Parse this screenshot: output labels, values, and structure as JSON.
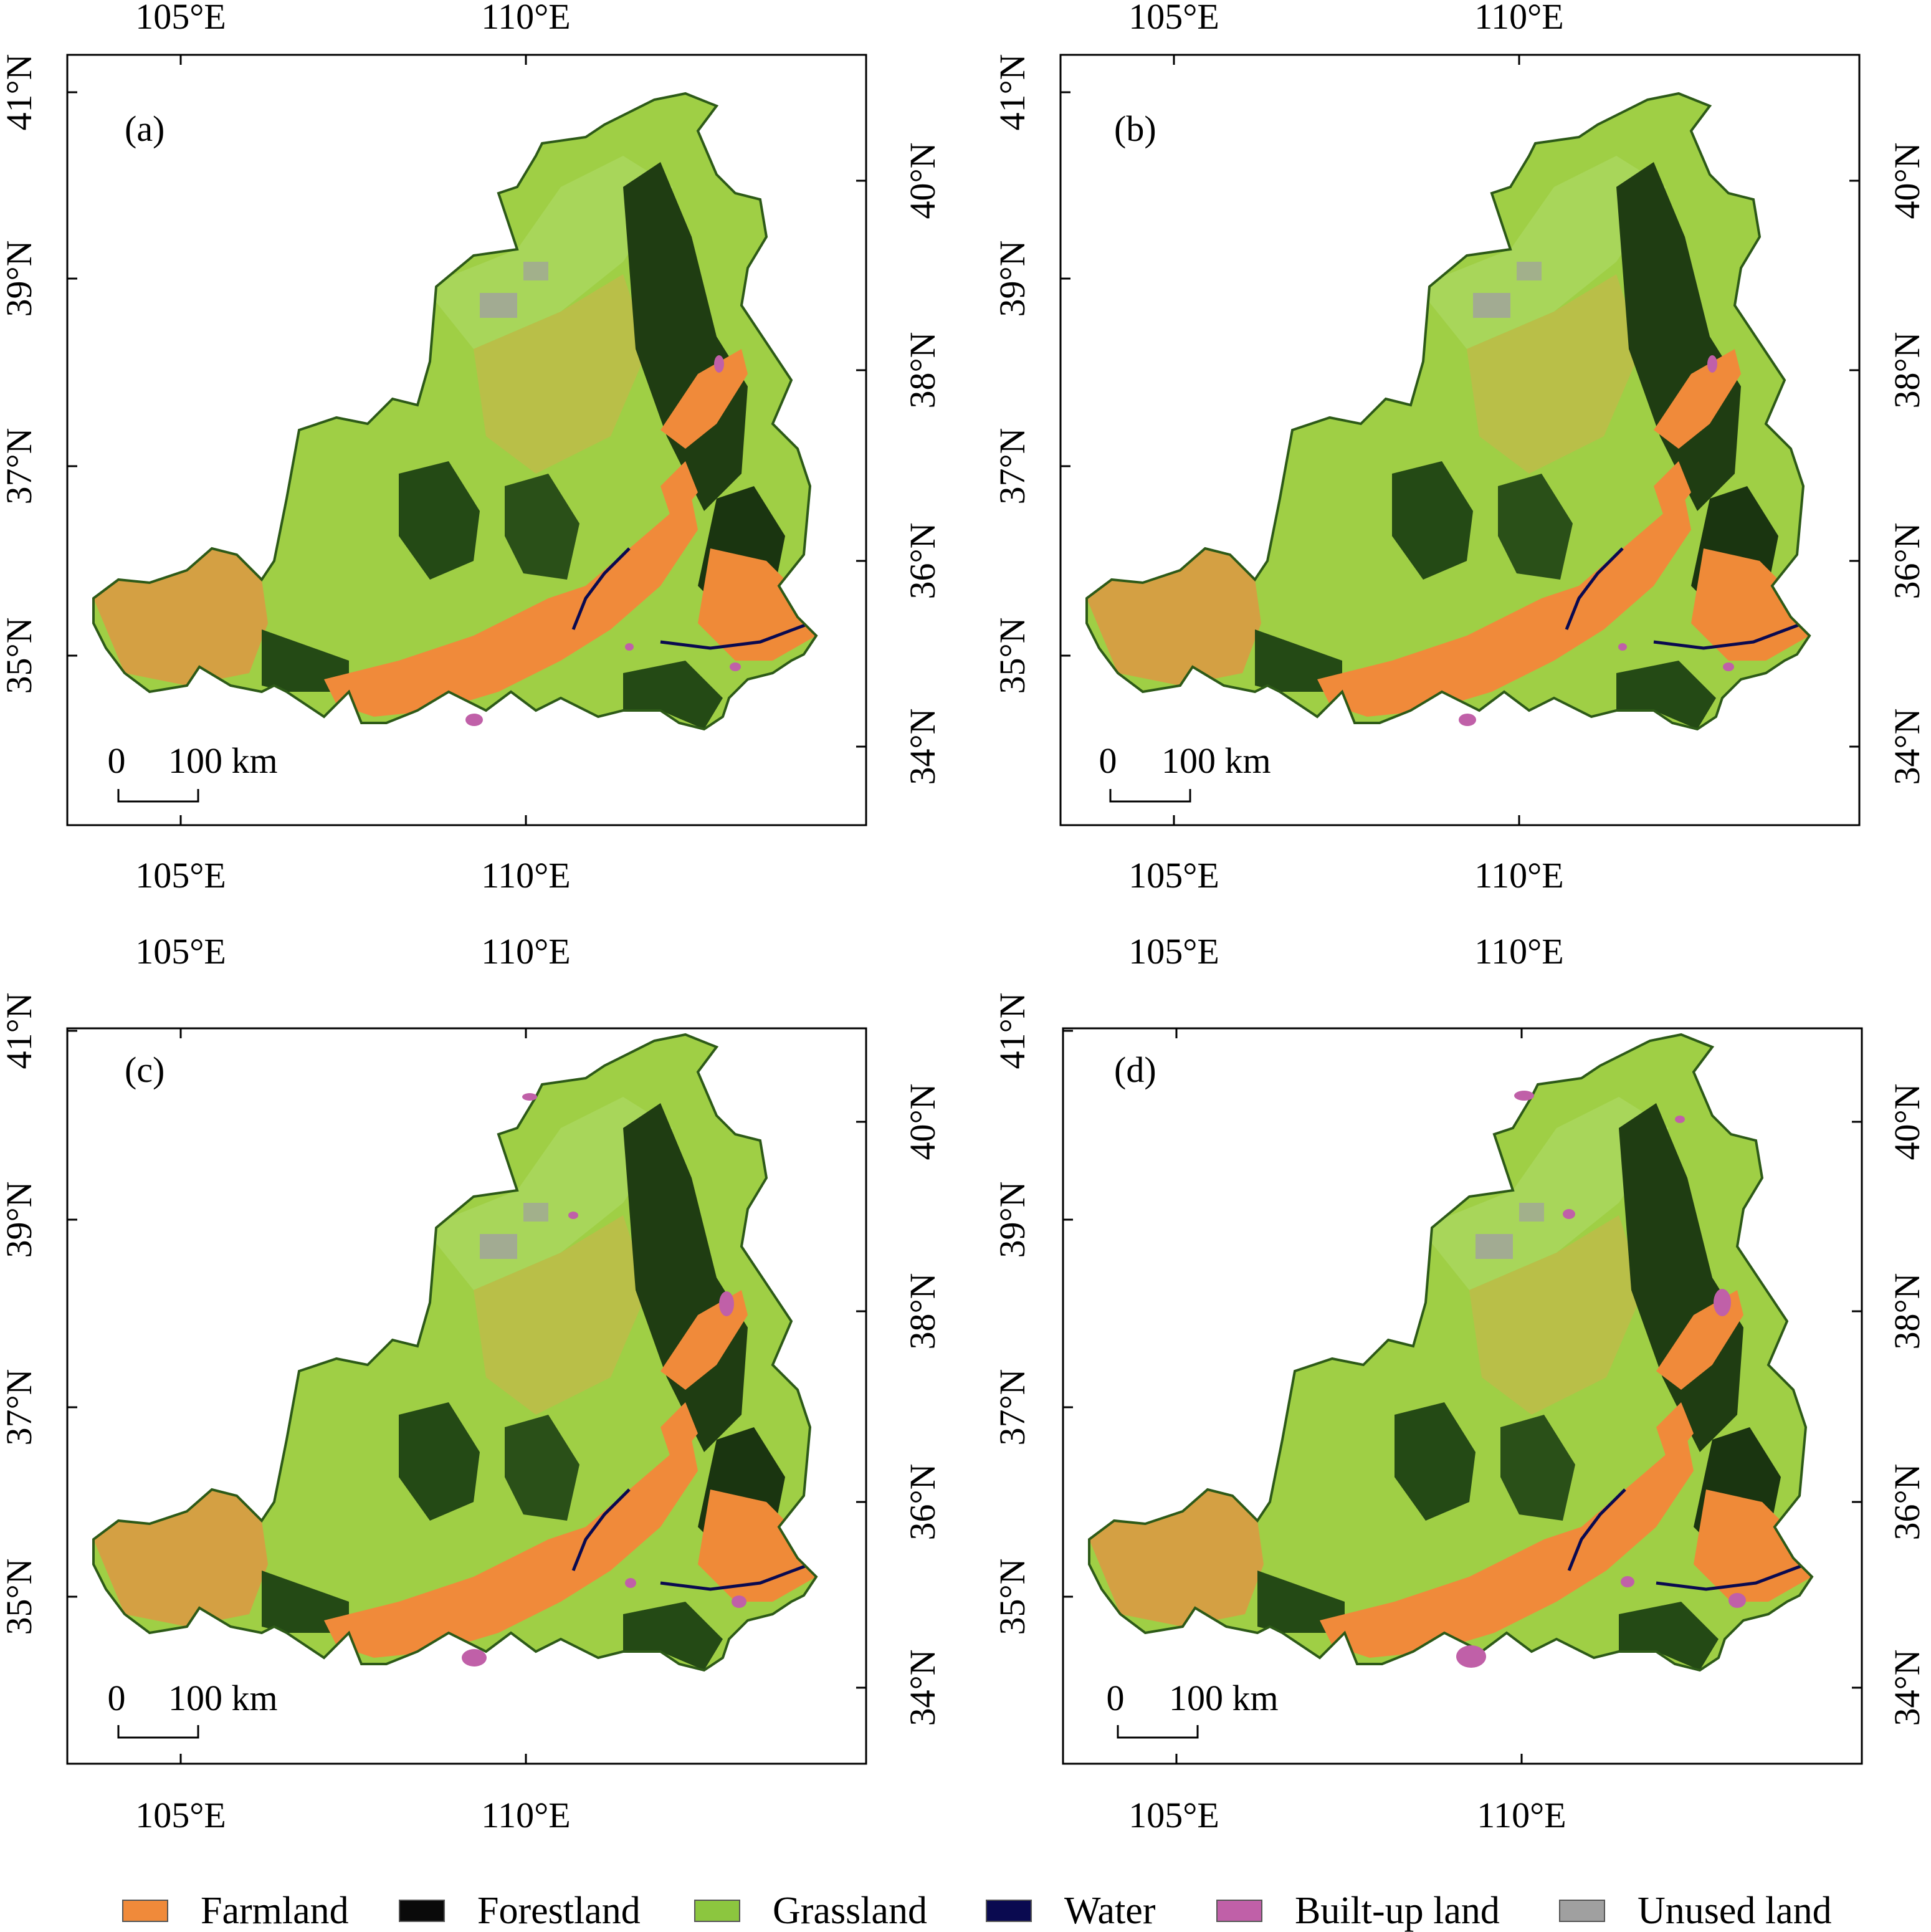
{
  "panels": [
    {
      "id": "a",
      "label": "(a)"
    },
    {
      "id": "b",
      "label": "(b)"
    },
    {
      "id": "c",
      "label": "(c)"
    },
    {
      "id": "d",
      "label": "(d)"
    }
  ],
  "axes": {
    "lon_ticks": [
      "105°E",
      "110°E"
    ],
    "lat_left_ticks": [
      "41°N",
      "39°N",
      "37°N",
      "35°N"
    ],
    "lat_right_ticks": [
      "40°N",
      "38°N",
      "36°N",
      "34°N"
    ]
  },
  "scale_bar": {
    "zero": "0",
    "length": "100 km"
  },
  "legend": [
    {
      "label": "Farmland",
      "color": "#f08a3a"
    },
    {
      "label": "Forestland",
      "color": "#0a0a0a"
    },
    {
      "label": "Grassland",
      "color": "#8cc63f"
    },
    {
      "label": "Water",
      "color": "#0a0a50"
    },
    {
      "label": "Built-up land",
      "color": "#c060a8"
    },
    {
      "label": "Unused land",
      "color": "#a0a0a0"
    }
  ]
}
